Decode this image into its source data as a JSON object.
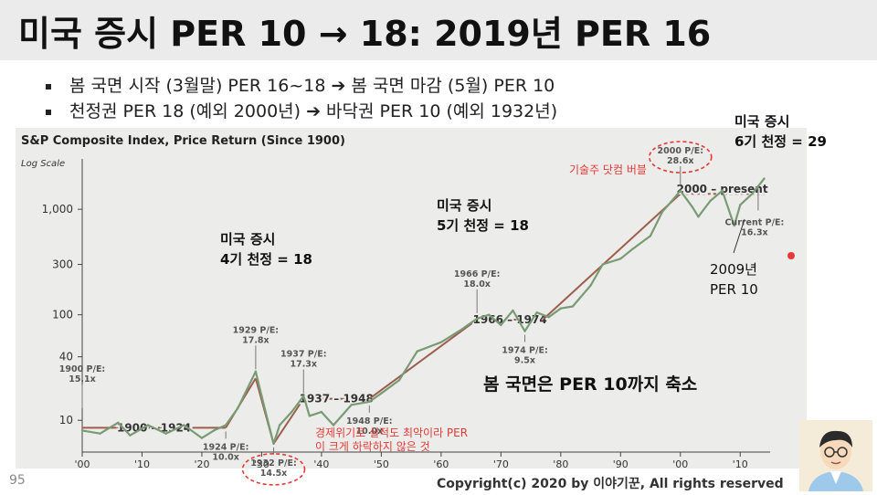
{
  "slide": {
    "title": "미국 증시 PER 10 → 18: 2019년 PER 16",
    "bullets": [
      "봄 국면 시작 (3월말) PER 16~18 ➔ 봄 국면 마감 (5월) PER 10",
      "천정권 PER 18 (예외 2000년) ➔ 바닥권 PER 10 (예외 1932년)"
    ],
    "page_number": "95",
    "copyright": "Copyright(c) 2020 by 이야기꾼, All rights reserved"
  },
  "colors": {
    "line": "#7a9a76",
    "trend": "#9c5e4c",
    "accent_red": "#e53935",
    "plot_bg": "#ececea"
  },
  "chart_data": {
    "type": "line",
    "title": "S&P Composite Index, Price Return (Since 1900)",
    "ylabel": "Log Scale",
    "yscale": "log",
    "ylim": [
      5,
      3000
    ],
    "xlim": [
      1900,
      2015
    ],
    "yticks": [
      10,
      40,
      100,
      300,
      1000
    ],
    "ytick_labels": [
      "10",
      "40",
      "100",
      "300",
      "1,000"
    ],
    "xticks": [
      1900,
      1910,
      1920,
      1930,
      1940,
      1950,
      1960,
      1970,
      1980,
      1990,
      2000,
      2010
    ],
    "xtick_labels": [
      "'00",
      "'10",
      "'20",
      "'30",
      "'40",
      "'50",
      "'60",
      "'70",
      "'80",
      "'90",
      "'00",
      "'10"
    ],
    "series": [
      {
        "x": [
          1900,
          1903,
          1906,
          1908,
          1911,
          1914,
          1917,
          1920,
          1922,
          1924,
          1926,
          1927,
          1929,
          1930,
          1932,
          1933,
          1935,
          1937,
          1938,
          1940,
          1942,
          1945,
          1948,
          1950,
          1953,
          1956,
          1960,
          1963,
          1966,
          1968,
          1970,
          1972,
          1974,
          1976,
          1978,
          1980,
          1982,
          1985,
          1987,
          1990,
          1992,
          1995,
          1997,
          1998,
          2000,
          2002,
          2003,
          2005,
          2007,
          2009,
          2010,
          2012,
          2014
        ],
        "values": [
          8,
          7.5,
          9.5,
          7.2,
          9,
          7.5,
          9,
          6.8,
          8,
          9,
          13,
          17,
          29,
          17,
          6,
          9,
          12,
          17,
          11,
          12,
          9,
          14,
          15,
          18,
          24,
          45,
          55,
          70,
          92,
          100,
          80,
          110,
          70,
          105,
          95,
          115,
          120,
          190,
          300,
          340,
          420,
          560,
          950,
          1100,
          1500,
          1050,
          850,
          1200,
          1500,
          700,
          1100,
          1400,
          1950
        ]
      }
    ],
    "trend_segments": [
      {
        "label": "1900 – 1924",
        "x": [
          1900,
          1924
        ],
        "values": [
          8.5,
          8.5
        ]
      },
      {
        "label": "",
        "x": [
          1924,
          1929
        ],
        "values": [
          8.5,
          25
        ]
      },
      {
        "label": "",
        "x": [
          1929,
          1932
        ],
        "values": [
          25,
          6
        ]
      },
      {
        "label": "",
        "x": [
          1932,
          1937
        ],
        "values": [
          6,
          16
        ]
      },
      {
        "label": "1937 – 1948",
        "x": [
          1937,
          1948
        ],
        "values": [
          16,
          16
        ]
      },
      {
        "label": "",
        "x": [
          1948,
          1966
        ],
        "values": [
          16,
          90
        ]
      },
      {
        "label": "1966 – 1974",
        "x": [
          1966,
          1977
        ],
        "values": [
          90,
          90
        ]
      },
      {
        "label": "",
        "x": [
          1977,
          2000
        ],
        "values": [
          90,
          1400
        ]
      },
      {
        "label": "2000 – present",
        "x": [
          2000,
          2014
        ],
        "values": [
          1400,
          1400
        ]
      }
    ],
    "annotations": [
      {
        "text": [
          "1900 P/E:",
          "15.1x"
        ],
        "x": 1900,
        "y": 11.5
      },
      {
        "text": [
          "1924 P/E:",
          "10.0x"
        ],
        "x": 1924,
        "y": 8.5
      },
      {
        "text": [
          "1929 P/E:",
          "17.8x"
        ],
        "x": 1929,
        "y": 27
      },
      {
        "text": [
          "1932 P/E:",
          "14.5x"
        ],
        "x": 1932,
        "y": 6
      },
      {
        "text": [
          "1937 P/E:",
          "17.3x"
        ],
        "x": 1937,
        "y": 16
      },
      {
        "text": [
          "1948 P/E:",
          "10.0x"
        ],
        "x": 1948,
        "y": 15
      },
      {
        "text": [
          "1966 P/E:",
          "18.0x"
        ],
        "x": 1966,
        "y": 92
      },
      {
        "text": [
          "1974 P/E:",
          "9.5x"
        ],
        "x": 1974,
        "y": 70
      },
      {
        "text": [
          "2000 P/E:",
          "28.6x"
        ],
        "x": 2000,
        "y": 1500
      },
      {
        "text": [
          "Current P/E:",
          "16.3x"
        ],
        "x": 2013,
        "y": 1700
      }
    ],
    "callouts": [
      {
        "text": [
          "미국 증시",
          "4기 천정 = 18"
        ]
      },
      {
        "text": [
          "미국 증시",
          "5기 천정 = 18"
        ]
      },
      {
        "text": [
          "미국 증시",
          "6기 천정 = 29"
        ]
      },
      {
        "text": [
          "2009년",
          "PER 10"
        ]
      },
      {
        "text": [
          "기술주 닷컴 버블"
        ]
      },
      {
        "text": [
          "경제위기로 실적도 최악이라 PER",
          "이 크게 하락하지 않은 것"
        ]
      },
      {
        "text": [
          "봄 국면은 PER 10까지 축소"
        ]
      }
    ]
  }
}
